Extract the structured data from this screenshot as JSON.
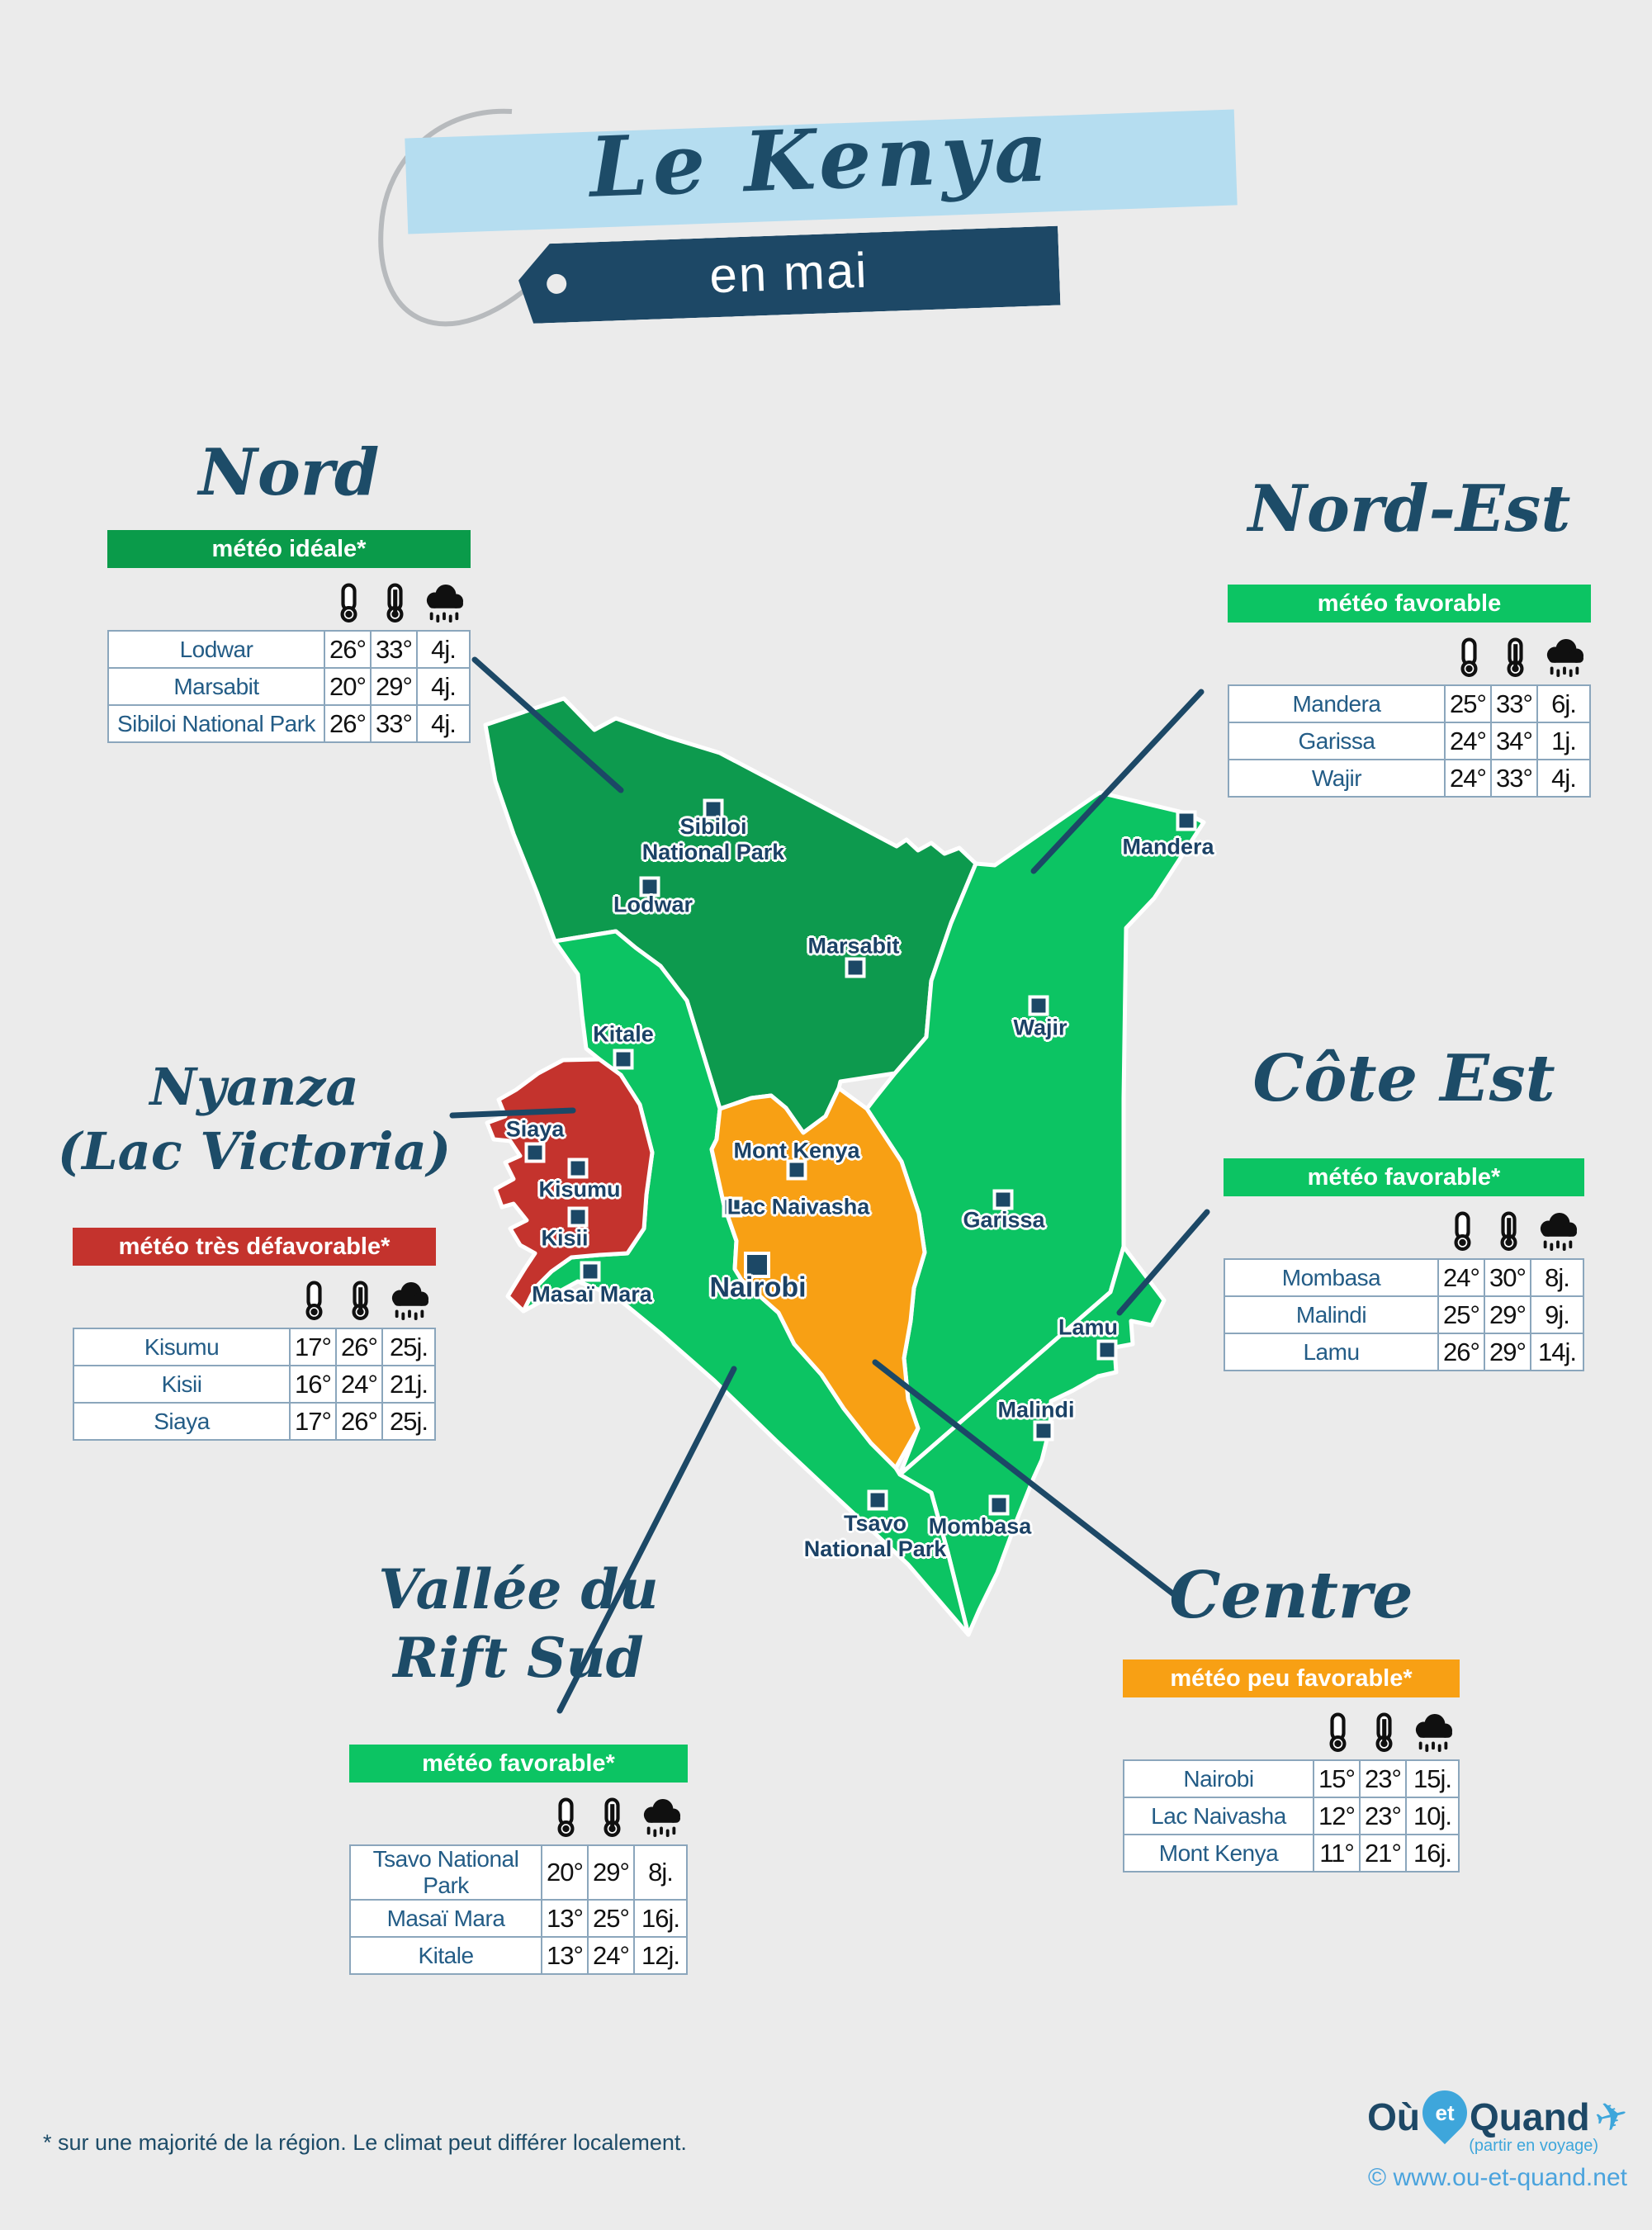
{
  "header": {
    "title": "Le Kenya",
    "subtitle": "en mai"
  },
  "regions": [
    {
      "name": "Nord",
      "title_display": "Nord",
      "badge": "météo idéale*",
      "badge_color": "#0a9b4a",
      "cities": [
        {
          "name": "Lodwar",
          "min": "26°",
          "max": "33°",
          "rain": "4j."
        },
        {
          "name": "Marsabit",
          "min": "20°",
          "max": "29°",
          "rain": "4j."
        },
        {
          "name": "Sibiloi National Park",
          "min": "26°",
          "max": "33°",
          "rain": "4j."
        }
      ]
    },
    {
      "name": "Nord-Est",
      "title_display": "Nord-Est",
      "badge": "météo favorable",
      "badge_color": "#0cc463",
      "cities": [
        {
          "name": "Mandera",
          "min": "25°",
          "max": "33°",
          "rain": "6j."
        },
        {
          "name": "Garissa",
          "min": "24°",
          "max": "34°",
          "rain": "1j."
        },
        {
          "name": "Wajir",
          "min": "24°",
          "max": "33°",
          "rain": "4j."
        }
      ]
    },
    {
      "name": "Nyanza (Lac Victoria)",
      "title_display": "Nyanza\n(Lac Victoria)",
      "badge": "météo très défavorable*",
      "badge_color": "#c4332d",
      "cities": [
        {
          "name": "Kisumu",
          "min": "17°",
          "max": "26°",
          "rain": "25j."
        },
        {
          "name": "Kisii",
          "min": "16°",
          "max": "24°",
          "rain": "21j."
        },
        {
          "name": "Siaya",
          "min": "17°",
          "max": "26°",
          "rain": "25j."
        }
      ]
    },
    {
      "name": "Côte Est",
      "title_display": "Côte Est",
      "badge": "météo favorable*",
      "badge_color": "#0cc463",
      "cities": [
        {
          "name": "Mombasa",
          "min": "24°",
          "max": "30°",
          "rain": "8j."
        },
        {
          "name": "Malindi",
          "min": "25°",
          "max": "29°",
          "rain": "9j."
        },
        {
          "name": "Lamu",
          "min": "26°",
          "max": "29°",
          "rain": "14j."
        }
      ]
    },
    {
      "name": "Vallée du Rift Sud",
      "title_display": "Vallée du\nRift Sud",
      "badge": "météo favorable*",
      "badge_color": "#0cc463",
      "cities": [
        {
          "name": "Tsavo National Park",
          "min": "20°",
          "max": "29°",
          "rain": "8j."
        },
        {
          "name": "Masaï Mara",
          "min": "13°",
          "max": "25°",
          "rain": "16j."
        },
        {
          "name": "Kitale",
          "min": "13°",
          "max": "24°",
          "rain": "12j."
        }
      ]
    },
    {
      "name": "Centre",
      "title_display": "Centre",
      "badge": "météo peu favorable*",
      "badge_color": "#f8a014",
      "cities": [
        {
          "name": "Nairobi",
          "min": "15°",
          "max": "23°",
          "rain": "15j."
        },
        {
          "name": "Lac Naivasha",
          "min": "12°",
          "max": "23°",
          "rain": "10j."
        },
        {
          "name": "Mont Kenya",
          "min": "11°",
          "max": "21°",
          "rain": "16j."
        }
      ]
    }
  ],
  "table_icons": {
    "min": "thermometer-min-icon",
    "max": "thermometer-max-icon",
    "rain": "rain-days-icon"
  },
  "map": {
    "colors": {
      "nord": "#0d9a4e",
      "nord_est": "#0cc463",
      "cote_est": "#0cc463",
      "vallee_rift": "#0cc463",
      "nyanza": "#c4332d",
      "centre": "#f8a014",
      "connector": "#1c4866"
    },
    "cities": [
      {
        "name": "Sibiloi\nNational Park",
        "marker": [
          864,
          980
        ],
        "label": [
          864,
          1017
        ]
      },
      {
        "name": "Lodwar",
        "marker": [
          787,
          1074
        ],
        "label": [
          791,
          1096
        ]
      },
      {
        "name": "Marsabit",
        "marker": [
          1036,
          1172
        ],
        "label": [
          1034,
          1146
        ]
      },
      {
        "name": "Mandera",
        "marker": [
          1437,
          994
        ],
        "label": [
          1415,
          1026
        ]
      },
      {
        "name": "Wajir",
        "marker": [
          1258,
          1218
        ],
        "label": [
          1260,
          1245
        ]
      },
      {
        "name": "Kitale",
        "marker": [
          755,
          1283
        ],
        "label": [
          755,
          1253
        ]
      },
      {
        "name": "Siaya",
        "marker": [
          648,
          1396
        ],
        "label": [
          648,
          1368
        ]
      },
      {
        "name": "Kisumu",
        "marker": [
          700,
          1415
        ],
        "label": [
          702,
          1441
        ]
      },
      {
        "name": "Kisii",
        "marker": [
          700,
          1474
        ],
        "label": [
          684,
          1500
        ]
      },
      {
        "name": "Mont Kenya",
        "marker": [
          965,
          1417
        ],
        "label": [
          965,
          1394
        ]
      },
      {
        "name": "Lac Naivasha",
        "marker": [
          887,
          1462
        ],
        "label": [
          967,
          1462
        ]
      },
      {
        "name": "Garissa",
        "marker": [
          1215,
          1453
        ],
        "label": [
          1216,
          1478
        ]
      },
      {
        "name": "Masaï Mara",
        "marker": [
          715,
          1540
        ],
        "label": [
          717,
          1568
        ]
      },
      {
        "name": "Nairobi",
        "marker": [
          917,
          1532
        ],
        "label": [
          918,
          1560
        ],
        "big": true
      },
      {
        "name": "Lamu",
        "marker": [
          1341,
          1635
        ],
        "label": [
          1318,
          1608
        ]
      },
      {
        "name": "Tsavo\nNational Park",
        "marker": [
          1063,
          1817
        ],
        "label": [
          1060,
          1861
        ]
      },
      {
        "name": "Malindi",
        "marker": [
          1264,
          1733
        ],
        "label": [
          1255,
          1708
        ]
      },
      {
        "name": "Mombasa",
        "marker": [
          1210,
          1823
        ],
        "label": [
          1187,
          1849
        ]
      }
    ]
  },
  "footer": {
    "note": "* sur une majorité de la région. Le climat peut différer localement."
  },
  "logo": {
    "part1": "Où",
    "part2": "et",
    "part3": "Quand",
    "tagline": "(partir en voyage)",
    "link": "© www.ou-et-quand.net",
    "pin_icon": "map-pin-icon",
    "plane_icon": "airplane-icon"
  }
}
